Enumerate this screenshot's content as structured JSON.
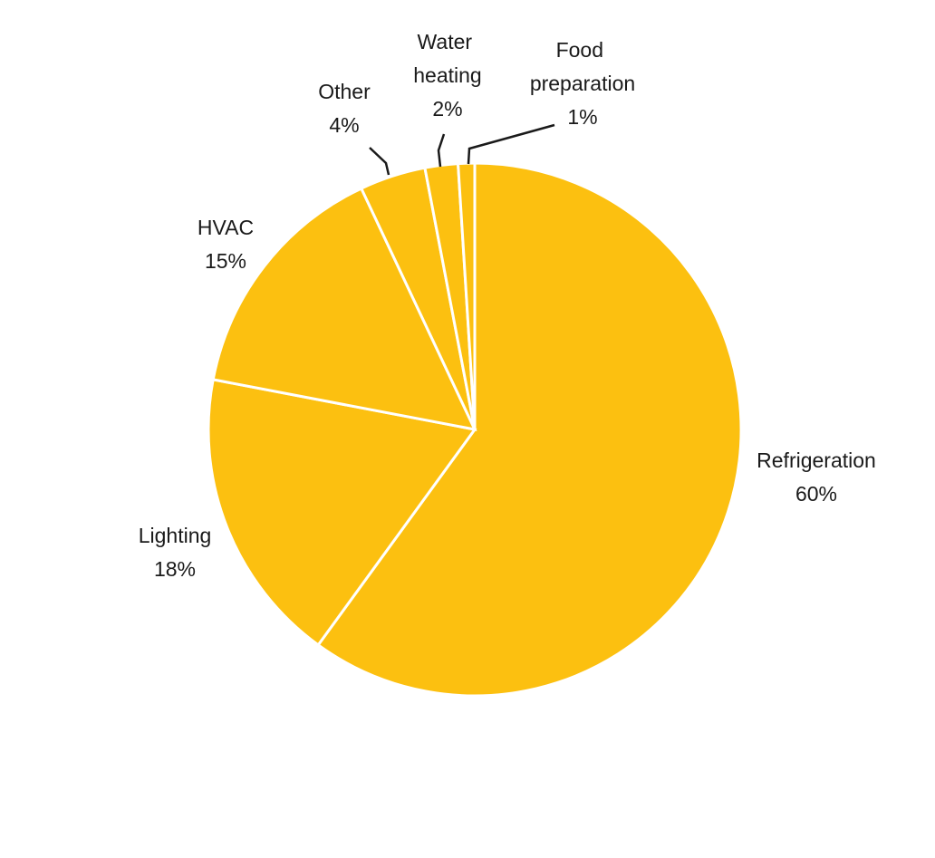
{
  "chart_data": {
    "type": "pie",
    "categories": [
      "Refrigeration",
      "Lighting",
      "HVAC",
      "Other",
      "Water heating",
      "Food preparation"
    ],
    "values": [
      60,
      18,
      15,
      4,
      2,
      1
    ],
    "value_labels": [
      "60%",
      "18%",
      "15%",
      "4%",
      "2%",
      "1%"
    ],
    "color": "#fcc010"
  }
}
